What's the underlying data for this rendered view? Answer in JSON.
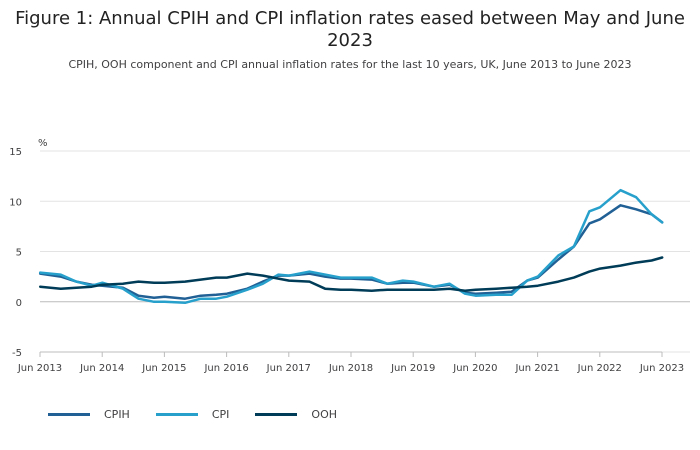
{
  "chart_data": {
    "type": "line",
    "title": "Figure 1: Annual CPIH and CPI inflation rates eased between May and June 2023",
    "subtitle": "CPIH, OOH component and CPI annual inflation rates for the last 10 years, UK, June 2013 to June 2023",
    "ylabel": "%",
    "xlabel": "",
    "ylim": [
      -5,
      15
    ],
    "yticks": [
      -5,
      0,
      5,
      10,
      15
    ],
    "xticks": [
      "Jun 2013",
      "Jun 2014",
      "Jun 2015",
      "Jun 2016",
      "Jun 2017",
      "Jun 2018",
      "Jun 2019",
      "Jun 2020",
      "Jun 2021",
      "Jun 2022",
      "Jun 2023"
    ],
    "x_start": 2013.417,
    "x_end": 2023.417,
    "series": [
      {
        "name": "CPIH",
        "color": "#206095",
        "points": [
          [
            2013.42,
            2.8
          ],
          [
            2013.75,
            2.5
          ],
          [
            2014.0,
            2.0
          ],
          [
            2014.25,
            1.7
          ],
          [
            2014.42,
            1.6
          ],
          [
            2014.75,
            1.4
          ],
          [
            2015.0,
            0.6
          ],
          [
            2015.25,
            0.4
          ],
          [
            2015.42,
            0.5
          ],
          [
            2015.75,
            0.3
          ],
          [
            2016.0,
            0.6
          ],
          [
            2016.25,
            0.7
          ],
          [
            2016.42,
            0.8
          ],
          [
            2016.75,
            1.3
          ],
          [
            2017.0,
            2.0
          ],
          [
            2017.25,
            2.6
          ],
          [
            2017.42,
            2.6
          ],
          [
            2017.75,
            2.8
          ],
          [
            2018.0,
            2.5
          ],
          [
            2018.25,
            2.3
          ],
          [
            2018.42,
            2.3
          ],
          [
            2018.75,
            2.2
          ],
          [
            2019.0,
            1.8
          ],
          [
            2019.25,
            1.9
          ],
          [
            2019.42,
            1.9
          ],
          [
            2019.75,
            1.5
          ],
          [
            2020.0,
            1.7
          ],
          [
            2020.25,
            0.9
          ],
          [
            2020.42,
            0.8
          ],
          [
            2020.75,
            0.9
          ],
          [
            2021.0,
            1.0
          ],
          [
            2021.25,
            2.1
          ],
          [
            2021.42,
            2.4
          ],
          [
            2021.75,
            4.2
          ],
          [
            2022.0,
            5.5
          ],
          [
            2022.25,
            7.8
          ],
          [
            2022.42,
            8.2
          ],
          [
            2022.75,
            9.6
          ],
          [
            2023.0,
            9.2
          ],
          [
            2023.25,
            8.7
          ],
          [
            2023.42,
            7.9
          ]
        ]
      },
      {
        "name": "CPI",
        "color": "#27a0cc",
        "points": [
          [
            2013.42,
            2.9
          ],
          [
            2013.75,
            2.7
          ],
          [
            2014.0,
            2.0
          ],
          [
            2014.25,
            1.6
          ],
          [
            2014.42,
            1.9
          ],
          [
            2014.75,
            1.3
          ],
          [
            2015.0,
            0.3
          ],
          [
            2015.25,
            0.0
          ],
          [
            2015.42,
            0.0
          ],
          [
            2015.75,
            -0.1
          ],
          [
            2016.0,
            0.3
          ],
          [
            2016.25,
            0.3
          ],
          [
            2016.42,
            0.5
          ],
          [
            2016.75,
            1.2
          ],
          [
            2017.0,
            1.8
          ],
          [
            2017.25,
            2.7
          ],
          [
            2017.42,
            2.6
          ],
          [
            2017.75,
            3.0
          ],
          [
            2018.0,
            2.7
          ],
          [
            2018.25,
            2.4
          ],
          [
            2018.42,
            2.4
          ],
          [
            2018.75,
            2.4
          ],
          [
            2019.0,
            1.8
          ],
          [
            2019.25,
            2.1
          ],
          [
            2019.42,
            2.0
          ],
          [
            2019.75,
            1.5
          ],
          [
            2020.0,
            1.8
          ],
          [
            2020.25,
            0.8
          ],
          [
            2020.42,
            0.6
          ],
          [
            2020.75,
            0.7
          ],
          [
            2021.0,
            0.7
          ],
          [
            2021.25,
            2.1
          ],
          [
            2021.42,
            2.5
          ],
          [
            2021.75,
            4.6
          ],
          [
            2022.0,
            5.5
          ],
          [
            2022.25,
            9.0
          ],
          [
            2022.42,
            9.4
          ],
          [
            2022.75,
            11.1
          ],
          [
            2023.0,
            10.4
          ],
          [
            2023.25,
            8.7
          ],
          [
            2023.42,
            7.9
          ]
        ]
      },
      {
        "name": "OOH",
        "color": "#003c57",
        "points": [
          [
            2013.42,
            1.5
          ],
          [
            2013.75,
            1.3
          ],
          [
            2014.0,
            1.4
          ],
          [
            2014.25,
            1.5
          ],
          [
            2014.42,
            1.7
          ],
          [
            2014.75,
            1.8
          ],
          [
            2015.0,
            2.0
          ],
          [
            2015.25,
            1.9
          ],
          [
            2015.42,
            1.9
          ],
          [
            2015.75,
            2.0
          ],
          [
            2016.0,
            2.2
          ],
          [
            2016.25,
            2.4
          ],
          [
            2016.42,
            2.4
          ],
          [
            2016.75,
            2.8
          ],
          [
            2017.0,
            2.6
          ],
          [
            2017.25,
            2.3
          ],
          [
            2017.42,
            2.1
          ],
          [
            2017.75,
            2.0
          ],
          [
            2018.0,
            1.3
          ],
          [
            2018.25,
            1.2
          ],
          [
            2018.42,
            1.2
          ],
          [
            2018.75,
            1.1
          ],
          [
            2019.0,
            1.2
          ],
          [
            2019.25,
            1.2
          ],
          [
            2019.42,
            1.2
          ],
          [
            2019.75,
            1.2
          ],
          [
            2020.0,
            1.3
          ],
          [
            2020.25,
            1.1
          ],
          [
            2020.42,
            1.2
          ],
          [
            2020.75,
            1.3
          ],
          [
            2021.0,
            1.4
          ],
          [
            2021.25,
            1.5
          ],
          [
            2021.42,
            1.6
          ],
          [
            2021.75,
            2.0
          ],
          [
            2022.0,
            2.4
          ],
          [
            2022.25,
            3.0
          ],
          [
            2022.42,
            3.3
          ],
          [
            2022.75,
            3.6
          ],
          [
            2023.0,
            3.9
          ],
          [
            2023.25,
            4.1
          ],
          [
            2023.42,
            4.4
          ]
        ]
      }
    ],
    "legend": [
      "CPIH",
      "CPI",
      "OOH"
    ],
    "legend_position": "bottom-left",
    "gridlines": true
  }
}
